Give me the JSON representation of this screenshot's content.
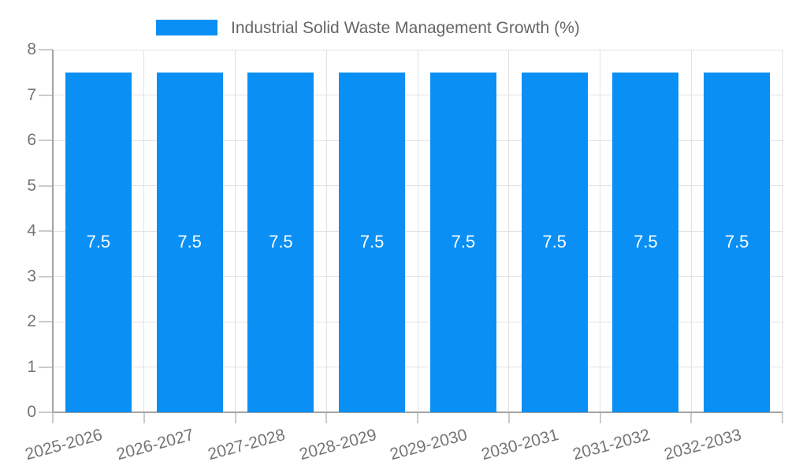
{
  "chart_data": {
    "type": "bar",
    "title": "",
    "legend_position": "top",
    "categories": [
      "2025-2026",
      "2026-2027",
      "2027-2028",
      "2028-2029",
      "2029-2030",
      "2030-2031",
      "2031-2032",
      "2032-2033"
    ],
    "series": [
      {
        "name": "Industrial Solid Waste Management Growth (%)",
        "values": [
          7.5,
          7.5,
          7.5,
          7.5,
          7.5,
          7.5,
          7.5,
          7.5
        ]
      }
    ],
    "bar_labels": [
      "7.5",
      "7.5",
      "7.5",
      "7.5",
      "7.5",
      "7.5",
      "7.5",
      "7.5"
    ],
    "xlabel": "",
    "ylabel": "",
    "ylim": [
      0,
      8
    ],
    "ytick_step": 1,
    "yticks": [
      0,
      1,
      2,
      3,
      4,
      5,
      6,
      7,
      8
    ],
    "grid": true,
    "colors": {
      "bar": "#0A8FF4",
      "grid": "#E2E2E2",
      "tick": "#CBCBCB",
      "axis": "#A3A3A3",
      "tick_label": "#757575",
      "legend_text": "#666666",
      "value_label": "#FFFFFF",
      "background": "#FFFFFF"
    }
  }
}
